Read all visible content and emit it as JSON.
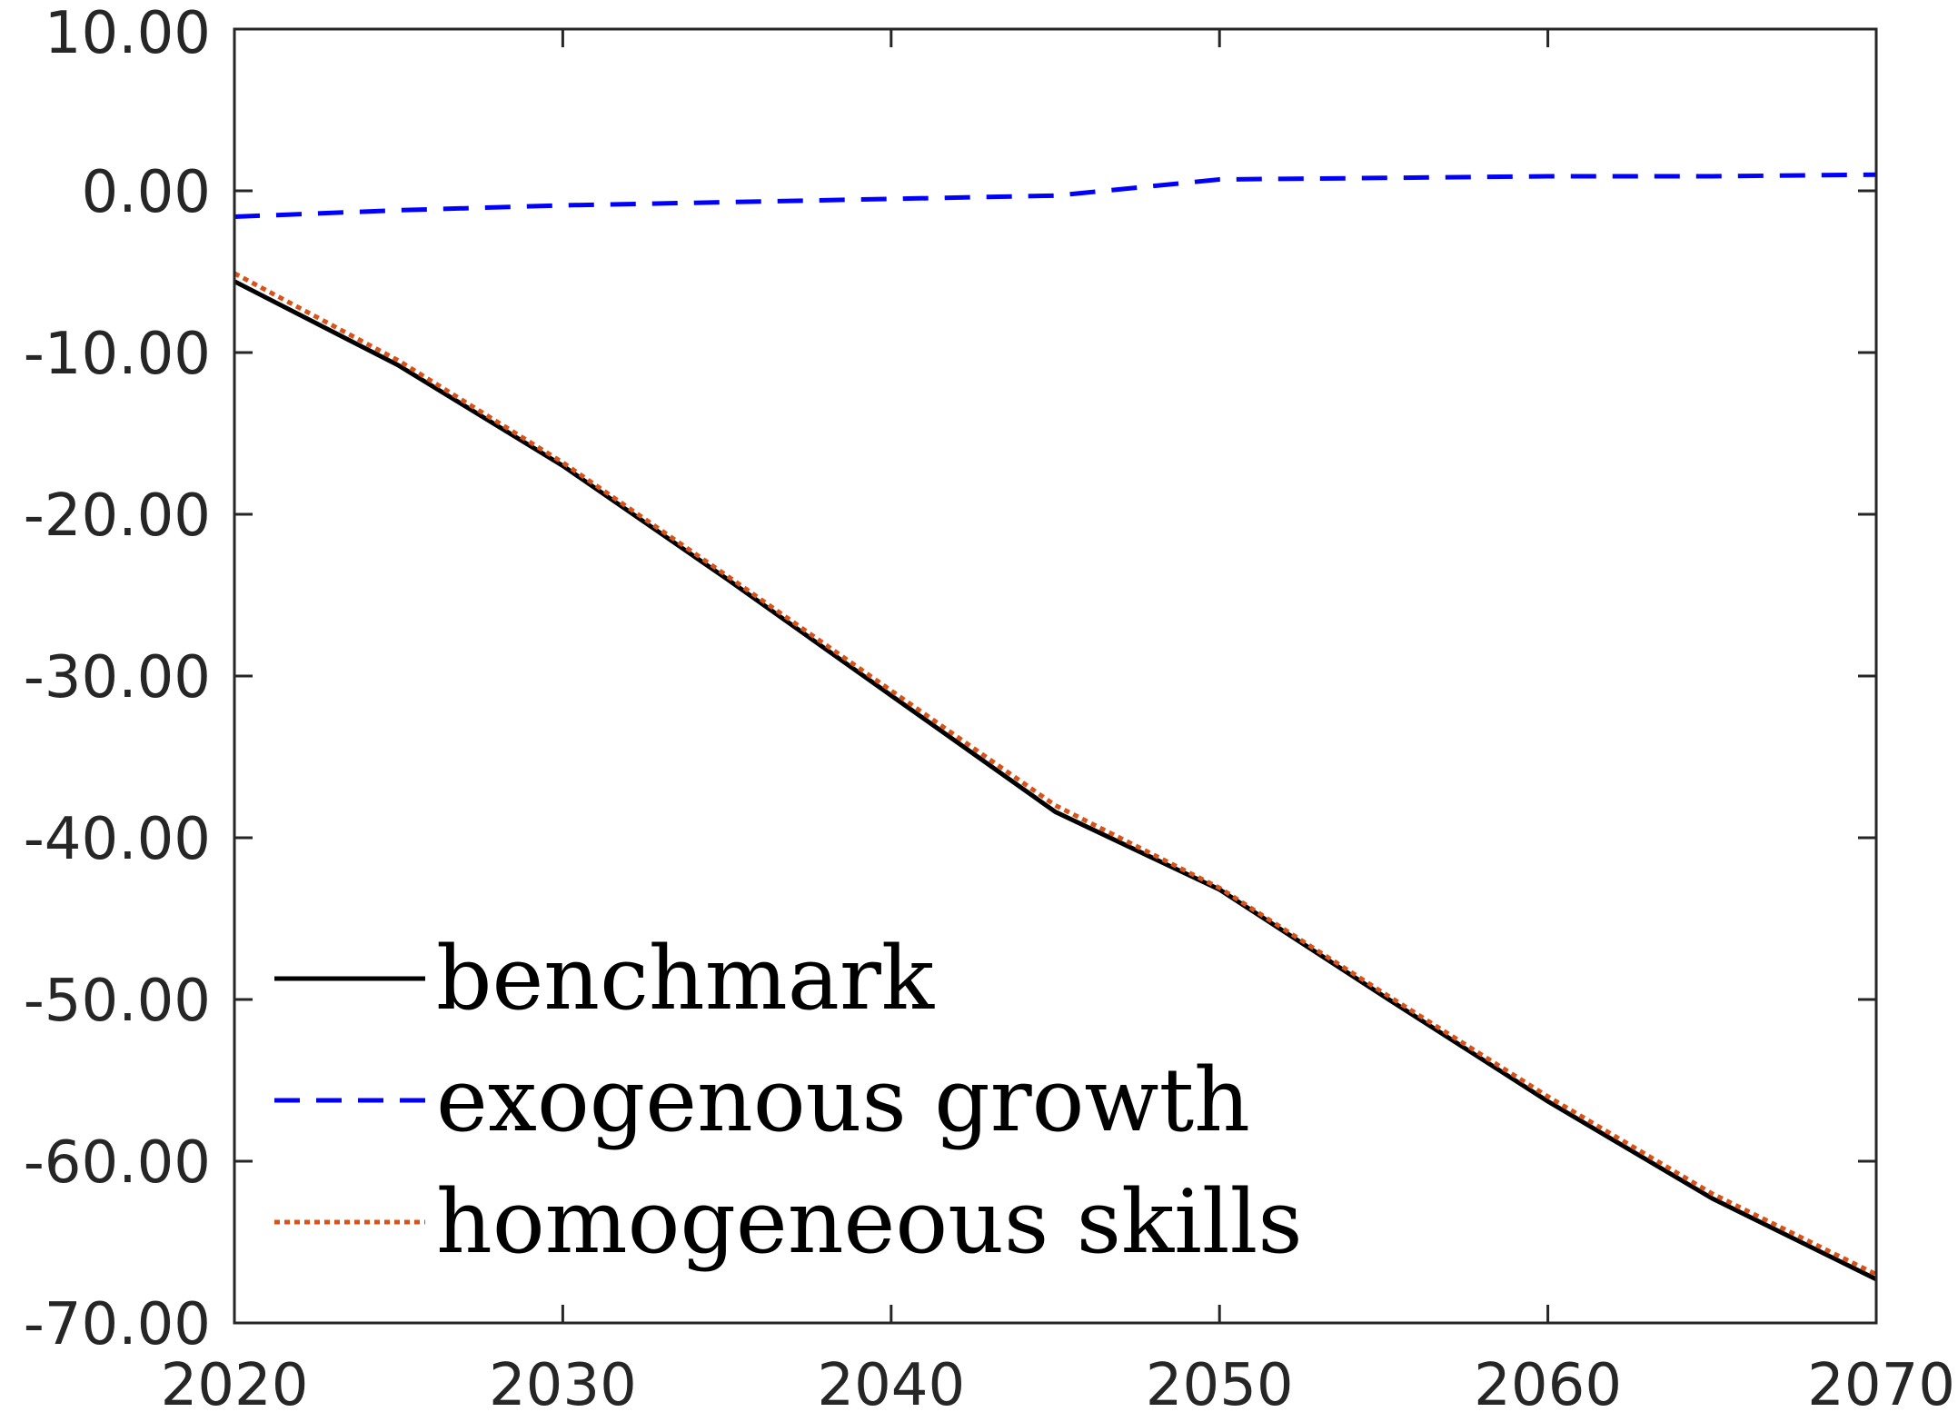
{
  "chart_data": {
    "type": "line",
    "title": "",
    "xlabel": "",
    "ylabel": "",
    "xlim": [
      2020,
      2070
    ],
    "ylim": [
      -70,
      10
    ],
    "xticks": [
      2020,
      2030,
      2040,
      2050,
      2060,
      2070
    ],
    "xtick_labels": [
      "2020",
      "2030",
      "2040",
      "2050",
      "2060",
      "2070"
    ],
    "yticks": [
      10,
      0,
      -10,
      -20,
      -30,
      -40,
      -50,
      -60,
      -70
    ],
    "ytick_labels": [
      "10.00",
      "0.00",
      "-10.00",
      "-20.00",
      "-30.00",
      "-40.00",
      "-50.00",
      "-60.00",
      "-70.00"
    ],
    "grid": false,
    "legend_position": "bottom-left",
    "series": [
      {
        "name": "benchmark",
        "color": "#000000",
        "style": "solid",
        "x": [
          2020,
          2025,
          2030,
          2035,
          2040,
          2045,
          2050,
          2055,
          2060,
          2065,
          2070
        ],
        "y": [
          -5.6,
          -10.8,
          -17.0,
          -24.0,
          -31.2,
          -38.4,
          -43.2,
          -49.8,
          -56.3,
          -62.3,
          -67.3
        ]
      },
      {
        "name": "exogenous growth",
        "color": "#0000ff",
        "style": "dashed",
        "x": [
          2020,
          2025,
          2030,
          2035,
          2040,
          2045,
          2050,
          2055,
          2060,
          2065,
          2070
        ],
        "y": [
          -1.6,
          -1.2,
          -0.9,
          -0.7,
          -0.5,
          -0.3,
          0.7,
          0.8,
          0.9,
          0.9,
          1.0
        ]
      },
      {
        "name": "homogeneous skills",
        "color": "#d95319",
        "style": "dotted",
        "x": [
          2020,
          2025,
          2030,
          2035,
          2040,
          2045,
          2050,
          2055,
          2060,
          2065,
          2070
        ],
        "y": [
          -5.1,
          -10.5,
          -16.8,
          -23.8,
          -30.9,
          -38.0,
          -43.1,
          -49.6,
          -56.0,
          -62.0,
          -67.0
        ]
      }
    ]
  }
}
